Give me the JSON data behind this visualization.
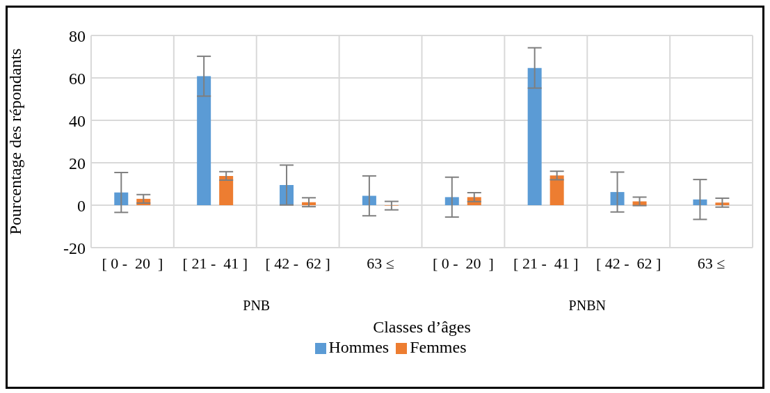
{
  "chart_data": {
    "type": "bar",
    "xlabel": "Classes d’âges",
    "ylabel": "Pourcentage des répondants",
    "categories": [
      "[ 0 -  20  ]",
      "[ 21 -  41 ]",
      "[ 42 -  62 ]",
      "63 ≤",
      "[ 0 -  20  ]",
      "[ 21 -  41 ]",
      "[ 42 -  62 ]",
      "63 ≤"
    ],
    "annotations": [
      "PNB",
      "PNBN"
    ],
    "series": [
      {
        "name": "Hommes",
        "color": "#5b9bd5",
        "values": [
          6.0,
          60.8,
          9.5,
          4.4,
          3.8,
          64.7,
          6.2,
          2.7
        ],
        "errors": [
          9.4,
          9.4,
          9.4,
          9.4,
          9.4,
          9.5,
          9.4,
          9.4
        ]
      },
      {
        "name": "Femmes",
        "color": "#ed7d31",
        "values": [
          3.0,
          13.8,
          1.4,
          -0.2,
          3.8,
          14.0,
          1.8,
          1.2
        ],
        "errors": [
          2,
          2,
          2.1,
          2,
          2.1,
          2,
          2,
          2.1
        ]
      }
    ],
    "ylim": [
      -20,
      80
    ],
    "yticks": [
      -20,
      0,
      20,
      40,
      60,
      80
    ],
    "grid": true,
    "legend": "bottom"
  }
}
